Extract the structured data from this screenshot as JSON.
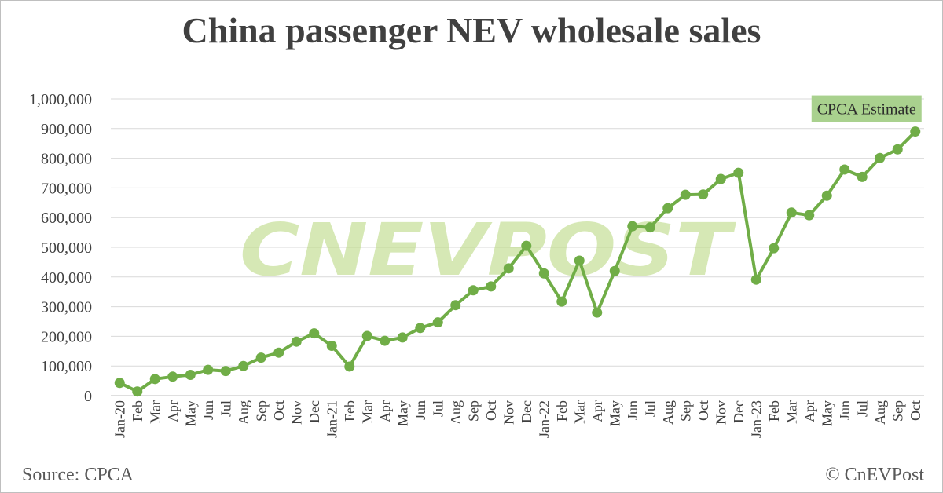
{
  "title": "China passenger NEV wholesale sales",
  "source": "Source: CPCA",
  "copyright": "© CnEVPost",
  "watermark": "CNEVPOST",
  "colors": {
    "line": "#70ad47",
    "annotation_bg": "#a9d18e",
    "grid": "#d9d9d9"
  },
  "chart_data": {
    "type": "line",
    "title": "China passenger NEV wholesale sales",
    "categories": [
      "Jan-20",
      "Feb",
      "Mar",
      "Apr",
      "May",
      "Jun",
      "Jul",
      "Aug",
      "Sep",
      "Oct",
      "Nov",
      "Dec",
      "Jan-21",
      "Feb",
      "Mar",
      "Apr",
      "May",
      "Jun",
      "Jul",
      "Aug",
      "Sep",
      "Oct",
      "Nov",
      "Dec",
      "Jan-22",
      "Feb",
      "Mar",
      "Apr",
      "May",
      "Jun",
      "Jul",
      "Aug",
      "Sep",
      "Oct",
      "Nov",
      "Dec",
      "Jan-23",
      "Feb",
      "Mar",
      "Apr",
      "May",
      "Jun",
      "Jul",
      "Aug",
      "Sep",
      "Oct"
    ],
    "values": [
      43000,
      14000,
      56000,
      64000,
      70000,
      87000,
      83000,
      100000,
      128000,
      145000,
      182000,
      210000,
      168000,
      98000,
      201000,
      185000,
      196000,
      228000,
      247000,
      305000,
      355000,
      368000,
      429000,
      505000,
      412000,
      317000,
      455000,
      280000,
      420000,
      571000,
      567000,
      632000,
      677000,
      678000,
      730000,
      751000,
      391000,
      497000,
      617000,
      608000,
      674000,
      762000,
      737000,
      801000,
      830000,
      890000
    ],
    "y_ticks": [
      "0",
      "100,000",
      "200,000",
      "300,000",
      "400,000",
      "500,000",
      "600,000",
      "700,000",
      "800,000",
      "900,000",
      "1,000,000"
    ],
    "ylim": [
      0,
      1000000
    ],
    "grid": true,
    "annotations": [
      {
        "text": "CPCA Estimate",
        "category_index": 45
      }
    ]
  }
}
